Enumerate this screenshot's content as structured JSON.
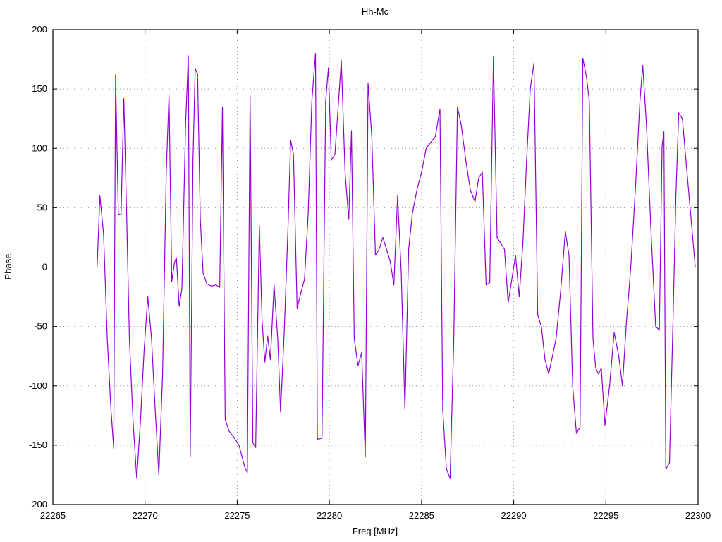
{
  "page": {
    "background": "#ffffff"
  },
  "chart_data": {
    "type": "line",
    "title": "Hh-Mc",
    "xlabel": "Freq [MHz]",
    "ylabel": "Phase",
    "xlim": [
      22265,
      22300
    ],
    "ylim": [
      -200,
      200
    ],
    "xticks": [
      22265,
      22270,
      22275,
      22280,
      22285,
      22290,
      22295,
      22300
    ],
    "yticks": [
      -200,
      -150,
      -100,
      -50,
      0,
      50,
      100,
      150,
      200
    ],
    "grid": true,
    "legend": "none",
    "line_color": "#9400d3",
    "grid_color": "#9a9a9a",
    "border_color": "#000000",
    "series": [
      {
        "name": "Hh-Mc",
        "x": [
          22267.4,
          22267.55,
          22267.75,
          22267.95,
          22268.15,
          22268.3,
          22268.4,
          22268.55,
          22268.7,
          22268.85,
          22269.0,
          22269.15,
          22269.35,
          22269.55,
          22269.75,
          22269.95,
          22270.15,
          22270.35,
          22270.55,
          22270.75,
          22270.95,
          22271.15,
          22271.3,
          22271.45,
          22271.6,
          22271.7,
          22271.85,
          22272.0,
          22272.2,
          22272.35,
          22272.45,
          22272.6,
          22272.72,
          22272.85,
          22273.0,
          22273.15,
          22273.35,
          22273.6,
          22273.85,
          22274.05,
          22274.2,
          22274.35,
          22274.55,
          22274.8,
          22275.1,
          22275.4,
          22275.55,
          22275.7,
          22275.85,
          22276.0,
          22276.2,
          22276.35,
          22276.5,
          22276.65,
          22276.8,
          22277.0,
          22277.2,
          22277.35,
          22277.55,
          22277.75,
          22277.9,
          22278.05,
          22278.25,
          22278.45,
          22278.65,
          22278.85,
          22279.05,
          22279.25,
          22279.35,
          22279.6,
          22279.8,
          22279.95,
          22280.1,
          22280.3,
          22280.5,
          22280.65,
          22280.85,
          22281.05,
          22281.2,
          22281.35,
          22281.55,
          22281.75,
          22281.95,
          22282.1,
          22282.3,
          22282.5,
          22282.7,
          22282.9,
          22283.1,
          22283.3,
          22283.5,
          22283.7,
          22283.9,
          22284.1,
          22284.3,
          22284.5,
          22284.75,
          22285.0,
          22285.25,
          22285.5,
          22285.75,
          22286.0,
          22286.15,
          22286.35,
          22286.55,
          22286.75,
          22286.95,
          22287.15,
          22287.4,
          22287.65,
          22287.9,
          22288.1,
          22288.3,
          22288.5,
          22288.7,
          22288.9,
          22289.1,
          22289.3,
          22289.5,
          22289.7,
          22289.9,
          22290.1,
          22290.3,
          22290.5,
          22290.7,
          22290.9,
          22291.1,
          22291.3,
          22291.5,
          22291.7,
          22291.9,
          22292.1,
          22292.3,
          22292.55,
          22292.8,
          22293.0,
          22293.2,
          22293.4,
          22293.6,
          22293.75,
          22293.95,
          22294.1,
          22294.3,
          22294.45,
          22294.6,
          22294.75,
          22294.95,
          22295.2,
          22295.45,
          22295.7,
          22295.9,
          22296.1,
          22296.35,
          22296.6,
          22296.85,
          22297.0,
          22297.2,
          22297.45,
          22297.7,
          22297.9,
          22298.05,
          22298.15,
          22298.25,
          22298.45,
          22298.65,
          22298.8,
          22298.95,
          22299.15,
          22299.4,
          22299.6,
          22299.85
        ],
        "y": [
          0,
          60,
          28,
          -60,
          -120,
          -153,
          162,
          45,
          44,
          142,
          45,
          -60,
          -130,
          -178,
          -130,
          -70,
          -25,
          -60,
          -120,
          -175,
          -90,
          80,
          145,
          -12,
          4,
          8,
          -33,
          -18,
          120,
          178,
          -160,
          90,
          167,
          163,
          40,
          -5,
          -14,
          -16,
          -15,
          -17,
          135,
          -128,
          -138,
          -143,
          -150,
          -168,
          -173,
          145,
          -148,
          -152,
          35,
          -45,
          -80,
          -58,
          -78,
          -15,
          -60,
          -122,
          -55,
          30,
          107,
          95,
          -35,
          -22,
          -10,
          45,
          140,
          180,
          -145,
          -144,
          140,
          168,
          90,
          95,
          140,
          174,
          80,
          40,
          115,
          -60,
          -83,
          -72,
          -160,
          155,
          110,
          10,
          15,
          25,
          15,
          5,
          -15,
          60,
          -5,
          -120,
          15,
          45,
          65,
          80,
          100,
          105,
          110,
          133,
          -120,
          -170,
          -178,
          -60,
          135,
          120,
          90,
          65,
          55,
          75,
          80,
          -15,
          -13,
          177,
          25,
          20,
          15,
          -30,
          -10,
          10,
          -25,
          20,
          90,
          150,
          172,
          -40,
          -50,
          -78,
          -90,
          -75,
          -60,
          -20,
          30,
          10,
          -100,
          -140,
          -135,
          176,
          160,
          140,
          -60,
          -85,
          -90,
          -85,
          -133,
          -100,
          -55,
          -75,
          -100,
          -50,
          0,
          65,
          140,
          170,
          120,
          30,
          -50,
          -53,
          102,
          114,
          -170,
          -165,
          -40,
          60,
          130,
          125,
          80,
          45,
          0
        ]
      }
    ]
  }
}
